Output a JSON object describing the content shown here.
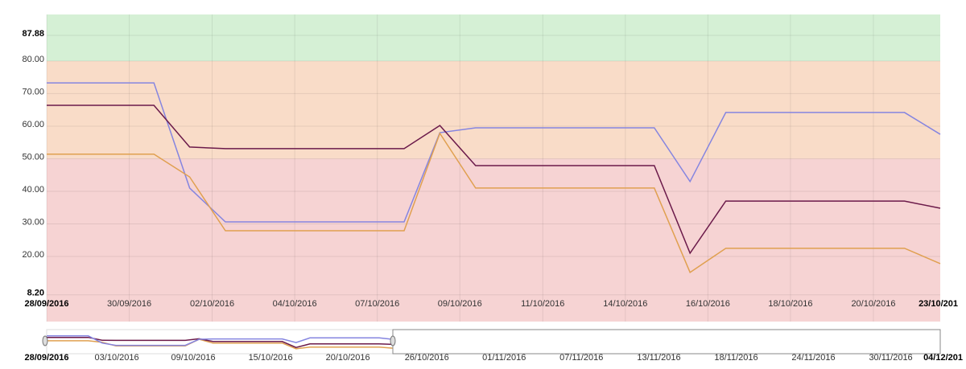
{
  "chart_data": {
    "type": "line",
    "x": [
      0,
      1,
      2,
      3,
      4,
      5,
      6,
      7,
      8,
      9,
      10,
      11,
      12,
      13,
      14,
      15,
      16,
      17,
      18,
      19,
      20,
      21,
      22,
      23,
      24,
      25
    ],
    "xlim": [
      0,
      25
    ],
    "ylim": [
      0,
      94.3
    ],
    "grid": true,
    "bands": [
      {
        "from": 80,
        "to": 94.3,
        "color": "#d5f0d5"
      },
      {
        "from": 50,
        "to": 80,
        "color": "#f9dcc8"
      },
      {
        "from": 0,
        "to": 50,
        "color": "#f6d3d3"
      }
    ],
    "yticks": [
      {
        "value": 8.2,
        "label": "8.20"
      },
      {
        "value": 20,
        "label": "20.00"
      },
      {
        "value": 30,
        "label": "30.00"
      },
      {
        "value": 40,
        "label": "40.00"
      },
      {
        "value": 50,
        "label": "50.00"
      },
      {
        "value": 60,
        "label": "60.00"
      },
      {
        "value": 70,
        "label": "70.00"
      },
      {
        "value": 80,
        "label": "80.00"
      },
      {
        "value": 87.88,
        "label": "87.88"
      }
    ],
    "xticks": [
      {
        "value": 0,
        "label": "28/09/2016"
      },
      {
        "value": 2.31,
        "label": "30/09/2016"
      },
      {
        "value": 4.63,
        "label": "02/10/2016"
      },
      {
        "value": 6.94,
        "label": "04/10/2016"
      },
      {
        "value": 9.25,
        "label": "07/10/2016"
      },
      {
        "value": 11.56,
        "label": "09/10/2016"
      },
      {
        "value": 13.88,
        "label": "11/10/2016"
      },
      {
        "value": 16.19,
        "label": "14/10/2016"
      },
      {
        "value": 18.5,
        "label": "16/10/2016"
      },
      {
        "value": 20.81,
        "label": "18/10/2016"
      },
      {
        "value": 23.13,
        "label": "20/10/2016"
      },
      {
        "value": 25.44,
        "label": "23/10/201"
      }
    ],
    "series": [
      {
        "color": "#8585e0",
        "values": [
          73.3,
          73.3,
          73.3,
          73.3,
          41.0,
          30.6,
          30.6,
          30.6,
          30.6,
          30.6,
          30.6,
          58.0,
          59.5,
          59.5,
          59.5,
          59.5,
          59.5,
          59.5,
          43.0,
          64.2,
          64.2,
          64.2,
          64.2,
          64.2,
          64.2,
          57.5
        ]
      },
      {
        "color": "#6b1a4a",
        "values": [
          66.4,
          66.4,
          66.4,
          66.4,
          53.6,
          53.1,
          53.1,
          53.1,
          53.1,
          53.1,
          53.1,
          60.2,
          47.9,
          47.9,
          47.9,
          47.9,
          47.9,
          47.9,
          21.0,
          37.0,
          37.0,
          37.0,
          37.0,
          37.0,
          37.0,
          34.8
        ]
      },
      {
        "color": "#e0a050",
        "values": [
          51.4,
          51.4,
          51.4,
          51.4,
          44.4,
          27.9,
          27.9,
          27.9,
          27.9,
          27.9,
          27.9,
          57.8,
          41.0,
          41.0,
          41.0,
          41.0,
          41.0,
          41.0,
          15.1,
          22.5,
          22.5,
          22.5,
          22.5,
          22.5,
          22.5,
          17.8
        ]
      }
    ],
    "navigator": {
      "xlim": [
        0,
        64.5
      ],
      "xticks": [
        {
          "value": 0,
          "label": "28/09/2016"
        },
        {
          "value": 5.06,
          "label": "03/10/2016"
        },
        {
          "value": 10.58,
          "label": "09/10/2016"
        },
        {
          "value": 16.16,
          "label": "15/10/2016"
        },
        {
          "value": 21.74,
          "label": "20/10/2016"
        },
        {
          "value": 27.44,
          "label": "26/10/2016"
        },
        {
          "value": 33.02,
          "label": "01/11/2016"
        },
        {
          "value": 38.6,
          "label": "07/11/2016"
        },
        {
          "value": 44.19,
          "label": "13/11/2016"
        },
        {
          "value": 49.77,
          "label": "18/11/2016"
        },
        {
          "value": 55.35,
          "label": "24/11/2016"
        },
        {
          "value": 60.93,
          "label": "30/11/2016"
        },
        {
          "value": 64.53,
          "label": "04/12/201"
        }
      ]
    }
  }
}
